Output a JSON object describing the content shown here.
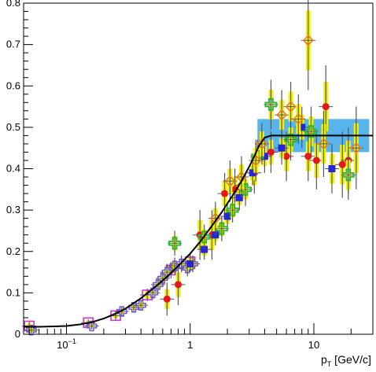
{
  "chart_data": {
    "type": "scatter",
    "xlabel": "p_T [GeV/c]",
    "xlabel_main": "p",
    "xlabel_sub": "T",
    "xlabel_rest": " [GeV/c]",
    "x_scale": "log",
    "xlim": [
      0.045,
      30
    ],
    "ylim": [
      0,
      0.8
    ],
    "grid": false,
    "x_tick_labels": [
      {
        "value": 0.1,
        "base": "10",
        "exp": "−1"
      },
      {
        "value": 1,
        "base": "1",
        "exp": ""
      },
      {
        "value": 10,
        "base": "10",
        "exp": ""
      }
    ],
    "y_tick_labels": [
      {
        "value": 0,
        "label": "0"
      },
      {
        "value": 0.1,
        "label": "0.1"
      },
      {
        "value": 0.2,
        "label": "0.2"
      },
      {
        "value": 0.3,
        "label": "0.3"
      },
      {
        "value": 0.4,
        "label": "0.4"
      },
      {
        "value": 0.5,
        "label": "0.5"
      },
      {
        "value": 0.6,
        "label": "0.6"
      },
      {
        "value": 0.7,
        "label": "0.7"
      },
      {
        "value": 0.8,
        "label": "0.8"
      }
    ],
    "fit_curve": {
      "color": "#000000",
      "points": [
        [
          0.045,
          0.018
        ],
        [
          0.06,
          0.018
        ],
        [
          0.08,
          0.019
        ],
        [
          0.1,
          0.02
        ],
        [
          0.13,
          0.024
        ],
        [
          0.16,
          0.029
        ],
        [
          0.2,
          0.038
        ],
        [
          0.25,
          0.05
        ],
        [
          0.3,
          0.062
        ],
        [
          0.4,
          0.087
        ],
        [
          0.5,
          0.11
        ],
        [
          0.6,
          0.13
        ],
        [
          0.7,
          0.148
        ],
        [
          0.8,
          0.165
        ],
        [
          1.0,
          0.195
        ],
        [
          1.2,
          0.223
        ],
        [
          1.5,
          0.262
        ],
        [
          1.8,
          0.295
        ],
        [
          2.2,
          0.335
        ],
        [
          2.6,
          0.37
        ],
        [
          3.0,
          0.405
        ],
        [
          3.3,
          0.43
        ],
        [
          3.6,
          0.455
        ],
        [
          4.0,
          0.475
        ],
        [
          4.5,
          0.48
        ],
        [
          6,
          0.48
        ],
        [
          10,
          0.48
        ],
        [
          20,
          0.48
        ],
        [
          30,
          0.48
        ]
      ]
    },
    "band": {
      "color": "#3ba8e8",
      "x_start": 3.5,
      "x_end": 28,
      "y_low": 0.44,
      "y_high": 0.52
    },
    "series": [
      {
        "marker": "open-square",
        "color": "#d633c8",
        "points": [
          {
            "x": 0.05,
            "y": 0.02,
            "err": 0.01
          },
          {
            "x": 0.15,
            "y": 0.028,
            "err": 0.008
          },
          {
            "x": 0.25,
            "y": 0.045,
            "err": 0.01
          },
          {
            "x": 0.45,
            "y": 0.095,
            "err": 0.015
          },
          {
            "x": 0.7,
            "y": 0.155,
            "err": 0.02
          },
          {
            "x": 1.0,
            "y": 0.175,
            "err": 0.02
          }
        ]
      },
      {
        "marker": "open-cross",
        "color": "#6f55cc",
        "points": [
          {
            "x": 0.052,
            "y": 0.01,
            "err": 0.008
          },
          {
            "x": 0.16,
            "y": 0.02,
            "err": 0.008
          },
          {
            "x": 0.28,
            "y": 0.055,
            "err": 0.01
          },
          {
            "x": 0.35,
            "y": 0.065,
            "err": 0.01
          },
          {
            "x": 0.4,
            "y": 0.07,
            "err": 0.01
          },
          {
            "x": 0.5,
            "y": 0.1,
            "err": 0.015
          },
          {
            "x": 0.55,
            "y": 0.12,
            "err": 0.015
          },
          {
            "x": 0.6,
            "y": 0.135,
            "err": 0.015
          },
          {
            "x": 0.65,
            "y": 0.15,
            "err": 0.02
          },
          {
            "x": 0.75,
            "y": 0.165,
            "err": 0.02
          },
          {
            "x": 0.85,
            "y": 0.17,
            "err": 0.02
          },
          {
            "x": 0.95,
            "y": 0.16,
            "err": 0.02
          },
          {
            "x": 1.05,
            "y": 0.17,
            "err": 0.02
          }
        ]
      },
      {
        "marker": "filled-circle",
        "color": "#e31818",
        "points": [
          {
            "x": 0.65,
            "y": 0.085,
            "err": 0.04
          },
          {
            "x": 0.8,
            "y": 0.12,
            "err": 0.05
          },
          {
            "x": 1.2,
            "y": 0.24,
            "err": 0.06
          },
          {
            "x": 1.5,
            "y": 0.24,
            "err": 0.06
          },
          {
            "x": 1.9,
            "y": 0.34,
            "err": 0.05
          },
          {
            "x": 2.3,
            "y": 0.35,
            "err": 0.05
          },
          {
            "x": 2.6,
            "y": 0.36,
            "err": 0.04
          },
          {
            "x": 3.3,
            "y": 0.39,
            "err": 0.05
          },
          {
            "x": 4.5,
            "y": 0.44,
            "err": 0.05
          },
          {
            "x": 6.0,
            "y": 0.43,
            "err": 0.06
          },
          {
            "x": 9.0,
            "y": 0.43,
            "err": 0.06
          },
          {
            "x": 10.5,
            "y": 0.42,
            "err": 0.07
          },
          {
            "x": 12.5,
            "y": 0.55,
            "err": 0.1
          },
          {
            "x": 17,
            "y": 0.41,
            "err": 0.08
          },
          {
            "x": 19,
            "y": 0.42,
            "err": 0.08
          }
        ]
      },
      {
        "marker": "filled-square",
        "color": "#2626d9",
        "points": [
          {
            "x": 1.0,
            "y": 0.17,
            "err": 0.02
          },
          {
            "x": 1.3,
            "y": 0.205,
            "err": 0.025
          },
          {
            "x": 1.6,
            "y": 0.24,
            "err": 0.025
          },
          {
            "x": 2.0,
            "y": 0.285,
            "err": 0.03
          },
          {
            "x": 2.5,
            "y": 0.33,
            "err": 0.03
          },
          {
            "x": 3.2,
            "y": 0.39,
            "err": 0.03
          },
          {
            "x": 4.0,
            "y": 0.43,
            "err": 0.04
          },
          {
            "x": 5.5,
            "y": 0.45,
            "err": 0.04
          },
          {
            "x": 8.0,
            "y": 0.5,
            "err": 0.05
          },
          {
            "x": 14,
            "y": 0.4,
            "err": 0.06
          }
        ]
      },
      {
        "marker": "open-cross-thick",
        "color": "#2fb82f",
        "points": [
          {
            "x": 0.75,
            "y": 0.22,
            "err": 0.03
          },
          {
            "x": 1.3,
            "y": 0.235,
            "err": 0.03
          },
          {
            "x": 1.8,
            "y": 0.255,
            "err": 0.03
          },
          {
            "x": 2.2,
            "y": 0.3,
            "err": 0.03
          },
          {
            "x": 2.8,
            "y": 0.35,
            "err": 0.04
          },
          {
            "x": 3.5,
            "y": 0.43,
            "err": 0.04
          },
          {
            "x": 4.5,
            "y": 0.555,
            "err": 0.06
          },
          {
            "x": 6.5,
            "y": 0.47,
            "err": 0.05
          },
          {
            "x": 9.5,
            "y": 0.49,
            "err": 0.06
          },
          {
            "x": 19,
            "y": 0.385,
            "err": 0.06
          }
        ]
      },
      {
        "marker": "open-diamond",
        "color": "#e87a2a",
        "points": [
          {
            "x": 1.6,
            "y": 0.28,
            "err": 0.04
          },
          {
            "x": 2.1,
            "y": 0.37,
            "err": 0.05
          },
          {
            "x": 2.6,
            "y": 0.38,
            "err": 0.05
          },
          {
            "x": 3.4,
            "y": 0.42,
            "err": 0.05
          },
          {
            "x": 3.8,
            "y": 0.46,
            "err": 0.05
          },
          {
            "x": 5.5,
            "y": 0.53,
            "err": 0.06
          },
          {
            "x": 6.5,
            "y": 0.55,
            "err": 0.06
          },
          {
            "x": 7.5,
            "y": 0.52,
            "err": 0.06
          },
          {
            "x": 9.0,
            "y": 0.71,
            "err": 0.12
          },
          {
            "x": 12,
            "y": 0.46,
            "err": 0.08
          },
          {
            "x": 22,
            "y": 0.45,
            "err": 0.1
          }
        ]
      }
    ]
  }
}
